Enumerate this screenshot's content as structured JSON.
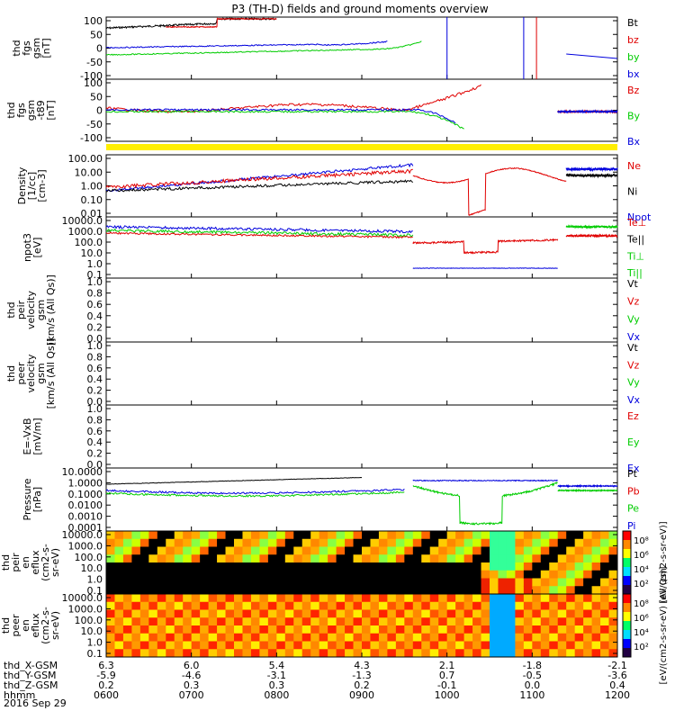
{
  "title": "P3 (TH-D) fields and ground moments overview",
  "colors": {
    "black": "#000000",
    "red": "#e00000",
    "green": "#00cc00",
    "blue": "#0000dd",
    "yellow": "#ffee00"
  },
  "chart_data": {
    "type": "line",
    "x_ticks": [
      "0600",
      "0700",
      "0800",
      "0900",
      "1000",
      "1100",
      "1200"
    ],
    "footer_rows": [
      {
        "label": "thd_X-GSM",
        "values": [
          "6.3",
          "6.0",
          "5.4",
          "4.3",
          "2.1",
          "-1.8",
          "-2.1"
        ]
      },
      {
        "label": "thd_Y-GSM",
        "values": [
          "-5.9",
          "-4.6",
          "-3.1",
          "-1.3",
          "0.7",
          "-0.5",
          "-3.6"
        ]
      },
      {
        "label": "thd_Z-GSM",
        "values": [
          "0.2",
          "0.3",
          "0.3",
          "0.2",
          "-0.1",
          "0.0",
          "0.4"
        ]
      },
      {
        "label": "hhmm",
        "values": [
          "0600",
          "0700",
          "0800",
          "0900",
          "1000",
          "1100",
          "1200"
        ]
      }
    ],
    "footer_date": "2016 Sep 29",
    "panels": [
      {
        "ylabel": [
          "thd",
          "fgs",
          "gsm",
          "[nT]"
        ],
        "ticks": [
          "100",
          "50",
          "0",
          "-50",
          "-100"
        ],
        "legend": [
          {
            "text": "Bt",
            "color": "#000000"
          },
          {
            "text": "bz",
            "color": "#e00000"
          },
          {
            "text": "by",
            "color": "#00cc00"
          },
          {
            "text": "bx",
            "color": "#0000dd"
          }
        ]
      },
      {
        "ylabel": [
          "thd",
          "fgs",
          "gsm",
          "-t89",
          "[nT]"
        ],
        "ticks": [
          "100",
          "50",
          "0",
          "-50",
          "-100"
        ],
        "legend": [
          {
            "text": "Bz",
            "color": "#e00000"
          },
          {
            "text": "By",
            "color": "#00cc00"
          },
          {
            "text": "Bx",
            "color": "#0000dd"
          }
        ]
      },
      {
        "ylabel": [
          "Density",
          "[1/cc]",
          "[cm-3]"
        ],
        "ticks": [
          "100.00",
          "10.00",
          "1.00",
          "0.10",
          "0.01"
        ],
        "legend": [
          {
            "text": "Ne",
            "color": "#e00000"
          },
          {
            "text": "Ni",
            "color": "#000000"
          },
          {
            "text": "Npot",
            "color": "#0000dd"
          }
        ]
      },
      {
        "ylabel": [
          "npot3",
          "[eV]"
        ],
        "ticks": [
          "10000.0",
          "1000.0",
          "100.0",
          "10.0",
          "1.0",
          "0.1"
        ],
        "legend": [
          {
            "text": "Te⊥",
            "color": "#e00000"
          },
          {
            "text": "Te||",
            "color": "#000000"
          },
          {
            "text": "Ti⊥",
            "color": "#00cc00"
          },
          {
            "text": "Ti||",
            "color": "#00cc00"
          }
        ]
      },
      {
        "ylabel": [
          "thd",
          "peir",
          "velocity",
          "gsm",
          "[km/s (All Qs)]"
        ],
        "ticks": [
          "1.0",
          "0.8",
          "0.6",
          "0.4",
          "0.2",
          "0.0"
        ],
        "legend": [
          {
            "text": "Vt",
            "color": "#000000"
          },
          {
            "text": "Vz",
            "color": "#e00000"
          },
          {
            "text": "Vy",
            "color": "#00cc00"
          },
          {
            "text": "Vx",
            "color": "#0000dd"
          }
        ]
      },
      {
        "ylabel": [
          "thd",
          "peer",
          "velocity",
          "gsm",
          "[km/s (All Qs)]"
        ],
        "ticks": [
          "1.0",
          "0.8",
          "0.6",
          "0.4",
          "0.2",
          "0.0"
        ],
        "legend": [
          {
            "text": "Vt",
            "color": "#000000"
          },
          {
            "text": "Vz",
            "color": "#e00000"
          },
          {
            "text": "Vy",
            "color": "#00cc00"
          },
          {
            "text": "Vx",
            "color": "#0000dd"
          }
        ]
      },
      {
        "ylabel": [
          "E=-VxB",
          "[mV/m]"
        ],
        "ticks": [
          "1.0",
          "0.8",
          "0.6",
          "0.4",
          "0.2",
          "0.0"
        ],
        "legend": [
          {
            "text": "Ez",
            "color": "#e00000"
          },
          {
            "text": "Ey",
            "color": "#00cc00"
          },
          {
            "text": "Ex",
            "color": "#0000dd"
          }
        ]
      },
      {
        "ylabel": [
          "Pressure",
          "[nPa]"
        ],
        "ticks": [
          "10.0000",
          "1.0000",
          "0.1000",
          "0.0100",
          "0.0010",
          "0.0001"
        ],
        "legend": [
          {
            "text": "Pt",
            "color": "#000000"
          },
          {
            "text": "Pb",
            "color": "#e00000"
          },
          {
            "text": "Pe",
            "color": "#00cc00"
          },
          {
            "text": "Pi",
            "color": "#0000dd"
          }
        ]
      },
      {
        "ylabel": [
          "thd",
          "peir",
          "en",
          "eflux",
          "(cm2-s-",
          "sr-eV)"
        ],
        "ticks": [
          "10000.0",
          "1000.0",
          "100.0",
          "10.0",
          "1.0",
          "0.1"
        ],
        "legend": []
      },
      {
        "ylabel": [
          "thd",
          "peer",
          "en",
          "eflux",
          "(cm2-s-",
          "sr-eV)"
        ],
        "ticks": [
          "10000.0",
          "1000.0",
          "100.0",
          "10.0",
          "1.0",
          "0.1"
        ],
        "legend": []
      }
    ],
    "colorbars": [
      {
        "ticks": [
          "10⁸",
          "10⁶",
          "10⁴",
          "10²"
        ],
        "label": "[eV/(cm2-s-sr-eV)]"
      },
      {
        "ticks": [
          "10⁸",
          "10⁶",
          "10⁴",
          "10²"
        ],
        "label": "[eV/(cm2-s-sr-eV) (All Qs)]"
      }
    ]
  }
}
